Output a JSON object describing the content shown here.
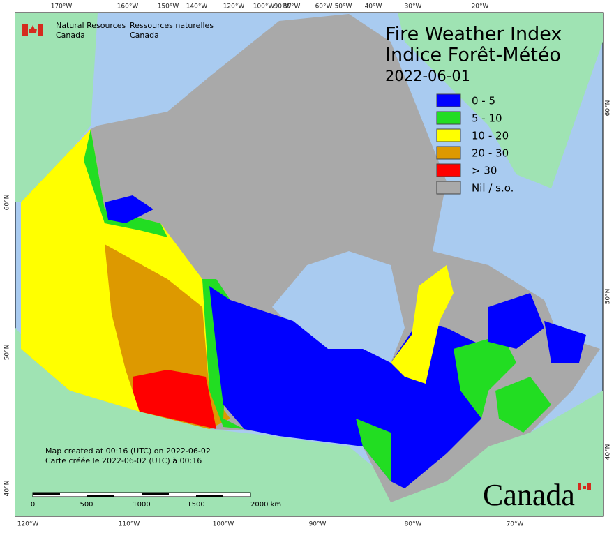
{
  "header": {
    "agency_en": [
      "Natural Resources",
      "Canada"
    ],
    "agency_fr": [
      "Ressources naturelles",
      "Canada"
    ]
  },
  "title": {
    "en": "Fire Weather Index",
    "fr": "Indice Forêt-Météo",
    "date": "2022-06-01"
  },
  "legend": [
    {
      "label": "0 - 5",
      "color": "#0000ff"
    },
    {
      "label": "5 - 10",
      "color": "#22dd22"
    },
    {
      "label": "10 - 20",
      "color": "#ffff00"
    },
    {
      "label": "20 - 30",
      "color": "#dd9900"
    },
    {
      "label": "> 30",
      "color": "#ff0000"
    },
    {
      "label": "Nil / s.o.",
      "color": "#a9a9a9"
    }
  ],
  "notes": [
    "Map created at 00:16 (UTC) on 2022-06-02",
    "Carte créée le 2022-06-02 (UTC) à 00:16"
  ],
  "scale_bar": [
    "0",
    "500",
    "1000",
    "1500",
    "2000  km"
  ],
  "graticule": {
    "top": [
      "170°W",
      "160°W",
      "150°W",
      "140°W",
      "120°W",
      "100°W",
      "90°W",
      "80°W",
      "60°W",
      "50°W",
      "40°W",
      "30°W",
      "20°W"
    ],
    "bottom": [
      "120°W",
      "110°W",
      "100°W",
      "90°W",
      "80°W",
      "70°W"
    ],
    "left": [
      "60°N",
      "50°N",
      "40°N"
    ],
    "right": [
      "60°N",
      "50°N",
      "40°N"
    ]
  },
  "wordmark": "Canada"
}
